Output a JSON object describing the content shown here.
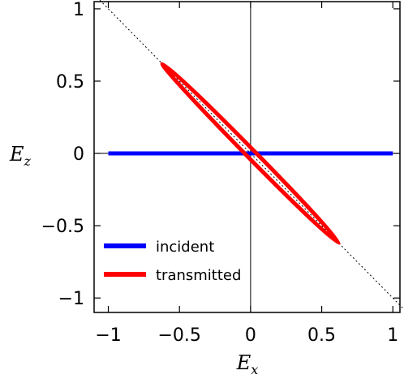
{
  "chart_data": {
    "type": "line",
    "title": "",
    "xlabel": {
      "base": "E",
      "sub": "x"
    },
    "ylabel": {
      "base": "E",
      "sub": "z"
    },
    "xlim": [
      -1.1,
      1.05
    ],
    "ylim": [
      -1.1,
      1.05
    ],
    "x_ticks": [
      {
        "value": -1,
        "label": "−1"
      },
      {
        "value": -0.5,
        "label": "−0.5"
      },
      {
        "value": 0,
        "label": "0"
      },
      {
        "value": 0.5,
        "label": "0.5"
      },
      {
        "value": 1,
        "label": "1"
      }
    ],
    "y_ticks": [
      {
        "value": -1,
        "label": "−1"
      },
      {
        "value": -0.5,
        "label": "−0.5"
      },
      {
        "value": 0,
        "label": "0"
      },
      {
        "value": 0.5,
        "label": "0.5"
      },
      {
        "value": 1,
        "label": "1"
      }
    ],
    "reference_lines": {
      "axes_through_origin": true,
      "dotted_diagonal": {
        "from": [
          -1.1,
          1.1
        ],
        "to": [
          1.1,
          -1.1
        ]
      }
    },
    "series": [
      {
        "name": "incident",
        "color": "#0000ff",
        "shape": "line",
        "points": [
          [
            -1,
            0
          ],
          [
            1,
            0
          ]
        ]
      },
      {
        "name": "transmitted",
        "color": "#ff0000",
        "shape": "ellipse",
        "center": [
          0,
          0
        ],
        "major_endpoint": [
          0.62,
          -0.62
        ],
        "minor_semi_axis": 0.03
      }
    ],
    "legend": {
      "position": "bottom-left"
    }
  }
}
